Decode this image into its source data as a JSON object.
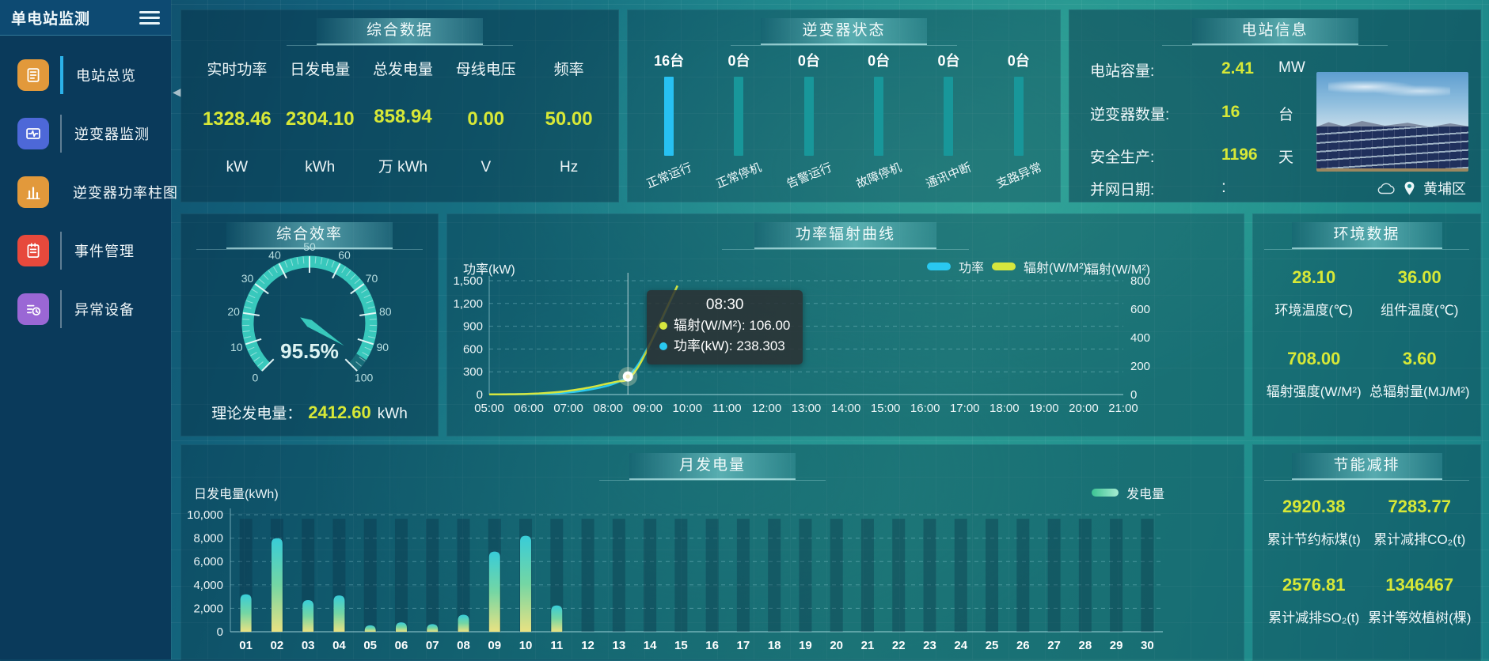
{
  "app": {
    "title": "单电站监测"
  },
  "colors": {
    "accent_yellow": "#d7e837",
    "accent_cyan": "#29c8f0",
    "gauge_teal": "#38c8bc"
  },
  "sidebar": {
    "items": [
      {
        "label": "电站总览",
        "icon": "station-overview-icon",
        "color": "#e2993b",
        "active": true
      },
      {
        "label": "逆变器监测",
        "icon": "inverter-monitor-icon",
        "color": "#4d68d8",
        "active": false
      },
      {
        "label": "逆变器功率柱图",
        "icon": "inverter-power-bars-icon",
        "color": "#e2993b",
        "active": false
      },
      {
        "label": "事件管理",
        "icon": "event-management-icon",
        "color": "#e7493c",
        "active": false
      },
      {
        "label": "异常设备",
        "icon": "abnormal-device-icon",
        "color": "#9a67d5",
        "active": false
      }
    ]
  },
  "summary": {
    "title": "综合数据",
    "metrics": [
      {
        "label": "实时功率",
        "value": "1328.46",
        "unit": "kW"
      },
      {
        "label": "日发电量",
        "value": "2304.10",
        "unit": "kWh"
      },
      {
        "label": "总发电量",
        "value": "858.94",
        "unit": "万 kWh"
      },
      {
        "label": "母线电压",
        "value": "0.00",
        "unit": "V"
      },
      {
        "label": "频率",
        "value": "50.00",
        "unit": "Hz"
      }
    ]
  },
  "inverter_status": {
    "title": "逆变器状态",
    "highlight_color": "#27c1f2",
    "bar_color": "#18979a",
    "columns": [
      {
        "count": "16台",
        "label": "正常运行",
        "highlight": true
      },
      {
        "count": "0台",
        "label": "正常停机",
        "highlight": false
      },
      {
        "count": "0台",
        "label": "告警运行",
        "highlight": false
      },
      {
        "count": "0台",
        "label": "故障停机",
        "highlight": false
      },
      {
        "count": "0台",
        "label": "通讯中断",
        "highlight": false
      },
      {
        "count": "0台",
        "label": "支路异常",
        "highlight": false
      }
    ]
  },
  "station_info": {
    "title": "电站信息",
    "rows": [
      {
        "label": "电站容量:",
        "value": "2.41",
        "unit": "MW"
      },
      {
        "label": "逆变器数量:",
        "value": "16",
        "unit": "台"
      },
      {
        "label": "安全生产:",
        "value": "1196",
        "unit": "天"
      },
      {
        "label": "并网日期:",
        "value": ":",
        "unit": ""
      }
    ],
    "location": "黄埔区"
  },
  "environment": {
    "title": "环境数据",
    "cells": [
      {
        "value": "28.10",
        "label": "环境温度(℃)"
      },
      {
        "value": "36.00",
        "label": "组件温度(℃)"
      },
      {
        "value": "708.00",
        "label": "辐射强度(W/M²)"
      },
      {
        "value": "3.60",
        "label": "总辐射量(MJ/M²)"
      }
    ]
  },
  "saving": {
    "title": "节能减排",
    "cells": [
      {
        "value": "2920.38",
        "label": "累计节约标煤(t)"
      },
      {
        "value": "7283.77",
        "label": "累计减排CO₂(t)"
      },
      {
        "value": "2576.81",
        "label": "累计减排SO₂(t)"
      },
      {
        "value": "1346467",
        "label": "累计等效植树(棵)"
      }
    ]
  },
  "chart_data": [
    {
      "id": "efficiency_gauge",
      "type": "gauge",
      "title": "综合效率",
      "value": 95.5,
      "value_label": "95.5%",
      "min": 0,
      "max": 100,
      "tick_interval": 10,
      "color": "#38c8bc",
      "footer": {
        "label": "理论发电量：",
        "value": "2412.60",
        "unit": "kWh"
      }
    },
    {
      "id": "power_radiation_curve",
      "type": "line",
      "title": "功率辐射曲线",
      "left_axis": {
        "name": "功率(kW)",
        "min": 0,
        "max": 1500,
        "ticks": [
          0,
          300,
          600,
          900,
          1200,
          1500
        ]
      },
      "right_axis": {
        "name": "辐射(W/M²)",
        "min": 0,
        "max": 800,
        "ticks": [
          0,
          200,
          400,
          600,
          800
        ]
      },
      "x_ticks": [
        "05:00",
        "06:00",
        "07:00",
        "08:00",
        "09:00",
        "10:00",
        "11:00",
        "12:00",
        "13:00",
        "14:00",
        "15:00",
        "16:00",
        "17:00",
        "18:00",
        "19:00",
        "20:00",
        "21:00"
      ],
      "x_range_minutes": [
        300,
        1260
      ],
      "x_data": [
        "05:00",
        "05:15",
        "05:30",
        "05:45",
        "06:00",
        "06:15",
        "06:30",
        "06:45",
        "07:00",
        "07:15",
        "07:30",
        "07:45",
        "08:00",
        "08:15",
        "08:30",
        "08:45",
        "09:00",
        "09:15",
        "09:30",
        "09:45"
      ],
      "series": [
        {
          "name": "功率",
          "axis": "left",
          "color": "#29c8f0",
          "values": [
            3,
            3,
            4,
            5,
            6,
            8,
            12,
            18,
            28,
            42,
            62,
            88,
            118,
            165,
            238.3,
            390,
            620,
            860,
            1150,
            1430
          ]
        },
        {
          "name": "辐射(W/M²)",
          "axis": "right",
          "color": "#d6e63e",
          "values": [
            1,
            1,
            2,
            3,
            5,
            8,
            12,
            18,
            26,
            36,
            48,
            62,
            78,
            92,
            106,
            190,
            320,
            470,
            620,
            765
          ]
        }
      ],
      "hover": {
        "x": "08:30",
        "series": "功率",
        "value": 238.303
      },
      "tooltip": {
        "time": "08:30",
        "rows": [
          "辐射(W/M²): 106.00",
          "功率(kW): 238.303"
        ]
      }
    },
    {
      "id": "monthly_energy",
      "type": "bar",
      "title": "月发电量",
      "ylabel": "日发电量(kWh)",
      "legend": "发电量",
      "ylim": [
        0,
        10000
      ],
      "y_ticks": [
        0,
        2000,
        4000,
        6000,
        8000,
        10000
      ],
      "categories": [
        "01",
        "02",
        "03",
        "04",
        "05",
        "06",
        "07",
        "08",
        "09",
        "10",
        "11",
        "12",
        "13",
        "14",
        "15",
        "16",
        "17",
        "18",
        "19",
        "20",
        "21",
        "22",
        "23",
        "24",
        "25",
        "26",
        "27",
        "28",
        "29",
        "30"
      ],
      "values": [
        3200,
        8000,
        2700,
        3100,
        550,
        800,
        650,
        1450,
        6850,
        8200,
        2250,
        0,
        0,
        0,
        0,
        0,
        0,
        0,
        0,
        0,
        0,
        0,
        0,
        0,
        0,
        0,
        0,
        0,
        0,
        0
      ]
    }
  ]
}
